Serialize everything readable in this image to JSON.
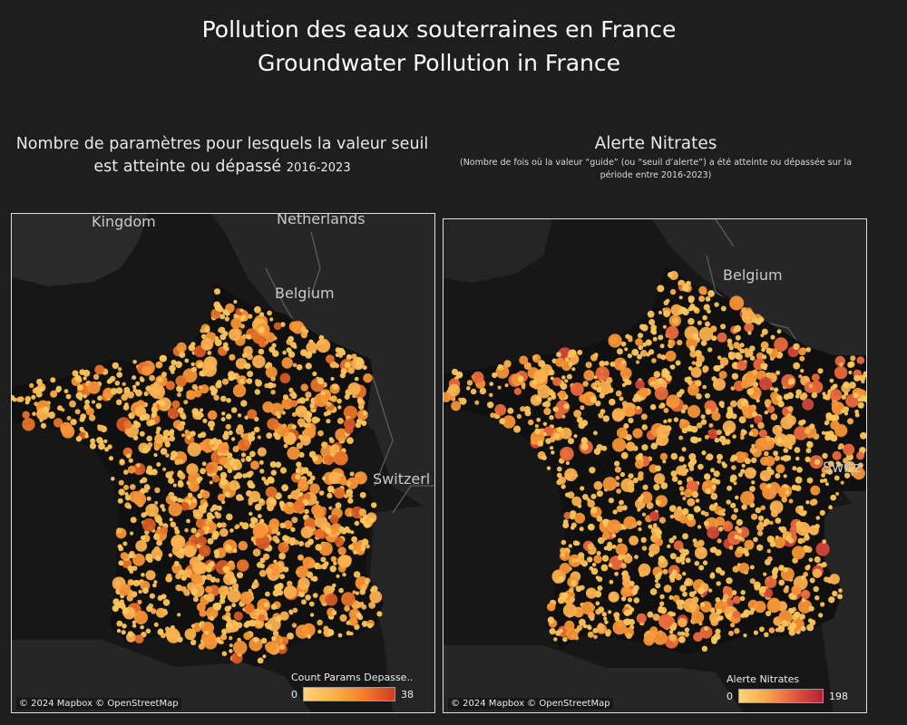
{
  "title_fr": "Pollution des eaux souterraines en France",
  "title_en": "Groundwater Pollution in France",
  "left_map": {
    "heading": "Nombre de paramètres pour lesquels la valeur seuil est atteinte ou dépassé",
    "heading_years": "2016-2023",
    "country_labels": [
      "Kingdom",
      "Netherlands",
      "Belgium",
      "Switzerl"
    ],
    "legend": {
      "title": "Count Params Depasse..",
      "min": "0",
      "max": "38"
    },
    "attribution": "© 2024 Mapbox © OpenStreetMap",
    "colors": [
      "#ffc65c",
      "#fbb14f",
      "#f59437",
      "#e8732a",
      "#d75b25"
    ]
  },
  "right_map": {
    "heading": "Alerte Nitrates",
    "note": "(Nombre de fois où la valeur “guide” (ou “seuil d’alerte”) a été atteinte ou dépassée sur la période entre 2016-2023)",
    "country_labels": [
      "Belgium",
      "Switz"
    ],
    "legend": {
      "title": "Alerte Nitrates",
      "min": "0",
      "max": "198"
    },
    "attribution": "© 2024 Mapbox © OpenStreetMap",
    "colors": [
      "#ffc65c",
      "#fbb14f",
      "#f59437",
      "#ea6a3c",
      "#d0483a"
    ]
  }
}
